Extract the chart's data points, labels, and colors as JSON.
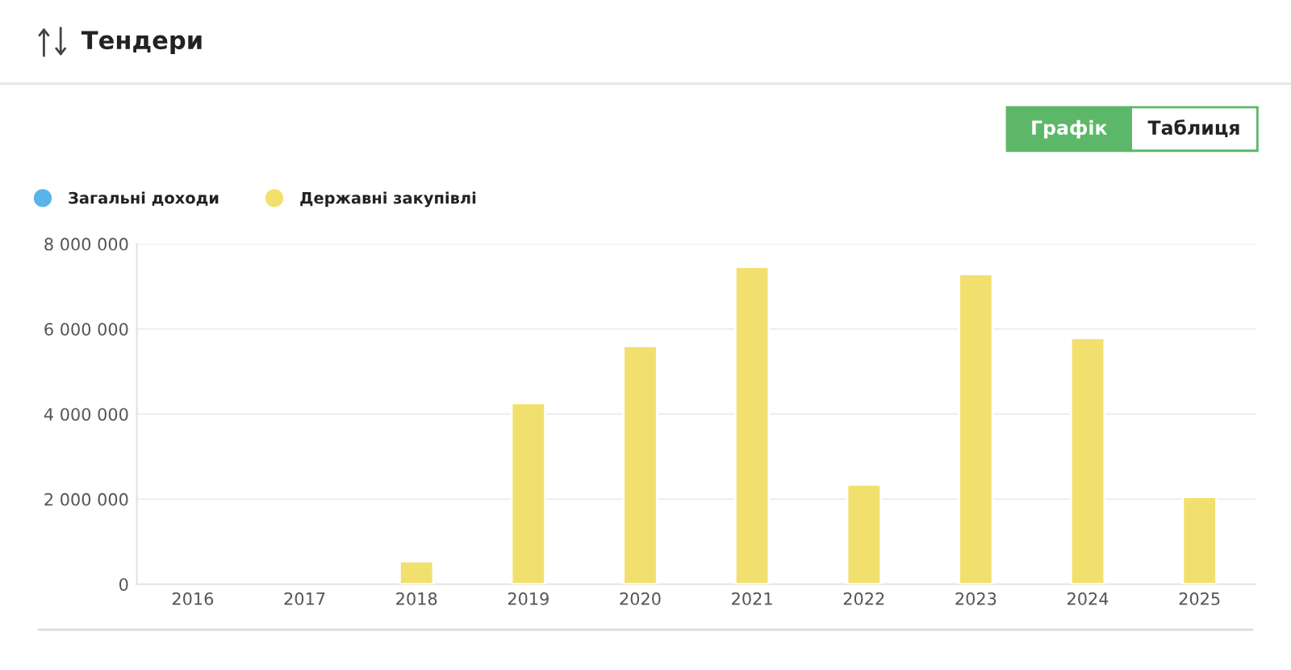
{
  "chart_data": {
    "type": "bar",
    "title": "Тендери",
    "annotations": [
      "Графік",
      "Таблиця"
    ],
    "categories": [
      "2016",
      "2017",
      "2018",
      "2019",
      "2020",
      "2021",
      "2022",
      "2023",
      "2024",
      "2025"
    ],
    "series": [
      {
        "name": "Загальні доходи",
        "color": "#5ab4ec",
        "values": [
          null,
          null,
          null,
          null,
          null,
          null,
          null,
          null,
          null,
          null
        ]
      },
      {
        "name": "Державні закупівлі",
        "color": "#f2e06e",
        "values": [
          null,
          null,
          540000,
          4260000,
          5600000,
          7460000,
          2340000,
          7290000,
          5790000,
          2050000
        ]
      }
    ],
    "ylim": [
      0,
      8000000
    ],
    "yticks": [
      0,
      {
        "value": 2000000,
        "label": "2 000 000"
      },
      {
        "value": 4000000,
        "label": "4 000 000"
      },
      {
        "value": 6000000,
        "label": "6 000 000"
      },
      {
        "value": 8000000,
        "label": "8 000 000"
      }
    ],
    "grid": "y",
    "legend": "top left"
  }
}
